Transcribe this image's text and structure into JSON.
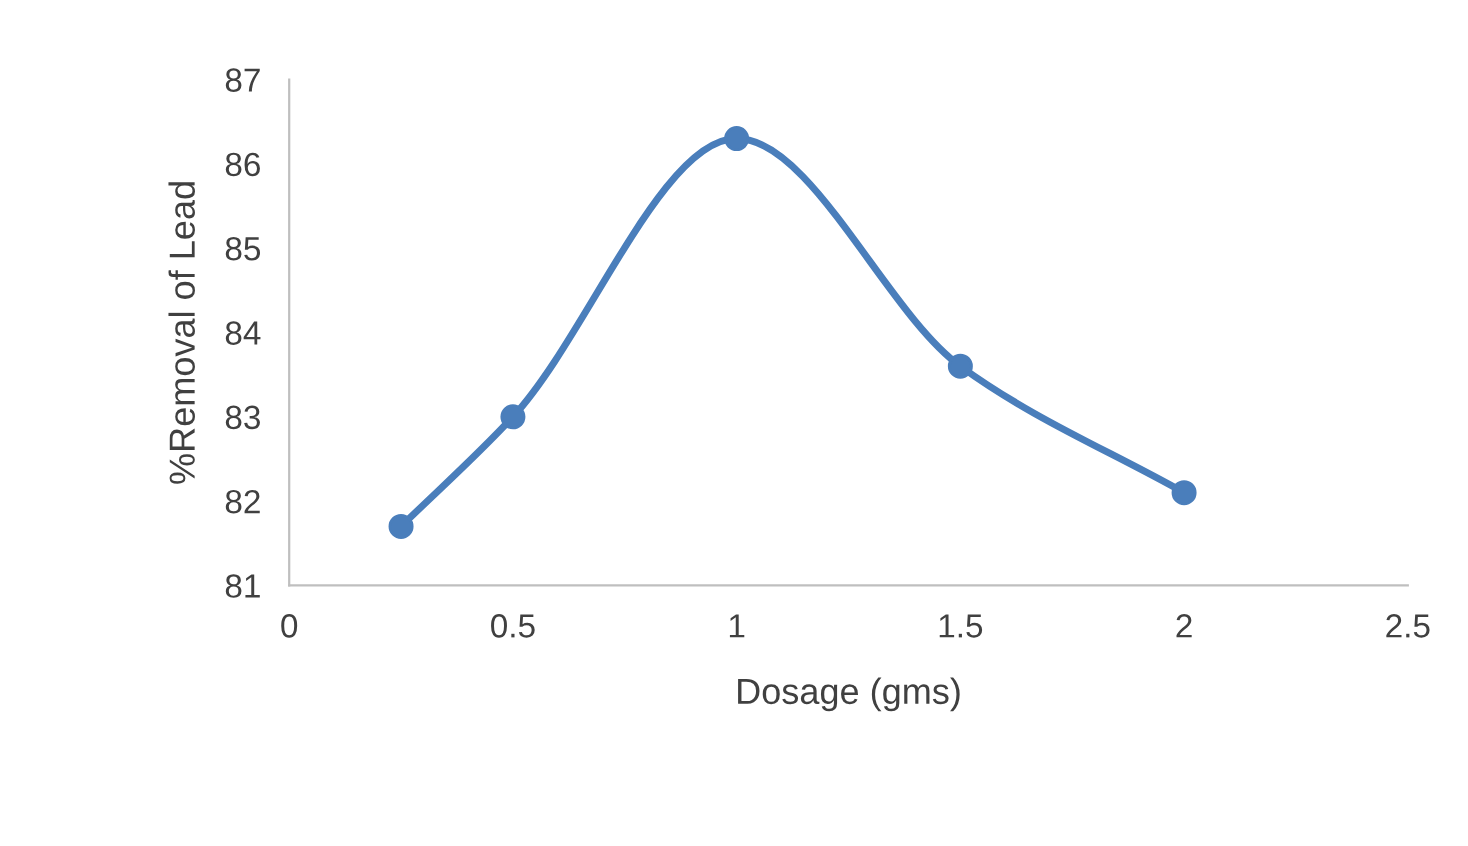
{
  "chart_data": {
    "type": "line",
    "xlabel": "Dosage (gms)",
    "ylabel": "%Removal of Lead",
    "series": [
      {
        "color": "#4a7ebb",
        "x": [
          0.25,
          0.5,
          1,
          1.5,
          2
        ],
        "values": [
          81.7,
          83.0,
          86.3,
          83.6,
          82.1
        ]
      }
    ],
    "xlim": [
      0,
      2.5
    ],
    "xticks": [
      0,
      0.5,
      1,
      1.5,
      2,
      2.5
    ],
    "ylim": [
      81,
      87
    ],
    "yticks": [
      81,
      82,
      83,
      84,
      85,
      86,
      87
    ],
    "grid": false,
    "legend": false,
    "marker": "circle",
    "line_style": "solid"
  }
}
